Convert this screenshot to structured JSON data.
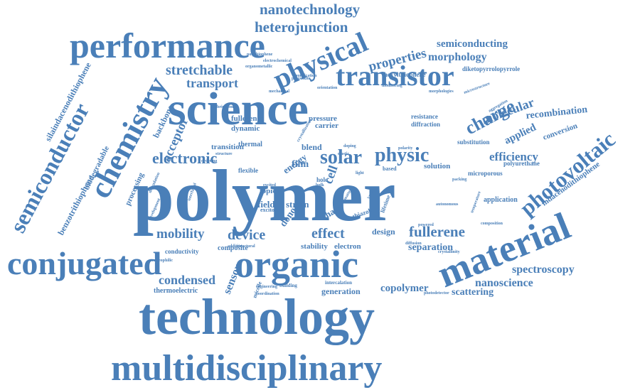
{
  "word_cloud": {
    "color": "#4a7fb8",
    "words": [
      "nanotechnology",
      "heterojunction",
      "performance",
      "physical",
      "properties",
      "semiconducting",
      "morphology",
      "diketopyrrolopyrrole",
      "hexylthiophene",
      "stretchable",
      "transistor",
      "transport",
      "science",
      "chemistry",
      "semiconductor",
      "silaindacenodithiophene",
      "polymer",
      "photovoltaic",
      "molecular",
      "charge",
      "recombination",
      "applied",
      "conversion",
      "efficiency",
      "electronic",
      "solar",
      "physic",
      "acceptor",
      "backbone",
      "fullerenes",
      "dynamic",
      "thermal",
      "transition",
      "pressure",
      "carrier",
      "blend",
      "film",
      "cell",
      "energy",
      "substitution",
      "resistance",
      "diffraction",
      "microporous",
      "polyurethane",
      "indacenodithiophene",
      "solution",
      "application",
      "material",
      "benzotrithiophene",
      "biodegradable",
      "processing",
      "field",
      "strain",
      "topic",
      "exciton",
      "donor",
      "chain",
      "hole",
      "mobility",
      "device",
      "effect",
      "fullerene",
      "design",
      "conjugated",
      "organic",
      "separation",
      "conductivity",
      "composite",
      "stability",
      "electron",
      "condensed",
      "sensor",
      "spectroscopy",
      "nanoscience",
      "copolymer",
      "scattering",
      "thermoelectric",
      "generation",
      "technology",
      "multidisciplinary",
      "polythiophene",
      "electrochemical",
      "organometallic",
      "perovskite",
      "mechanical",
      "orientation",
      "crystallization",
      "structure",
      "fabrication",
      "doping",
      "monitoring",
      "morphologies",
      "microstructure",
      "ordering",
      "elastic",
      "flexible",
      "thiazole",
      "based",
      "interfacial",
      "development",
      "nucleophilic",
      "structural",
      "building",
      "micelle",
      "composition",
      "crystallinity",
      "packing",
      "temperature",
      "diffusion",
      "layer",
      "additive",
      "autonomous",
      "photodetector",
      "intercalation",
      "engineering",
      "matter",
      "powered",
      "light",
      "aggregation",
      "degradation",
      "purification",
      "coordination",
      "bulk",
      "excited",
      "lifetime",
      "polarity"
    ]
  }
}
